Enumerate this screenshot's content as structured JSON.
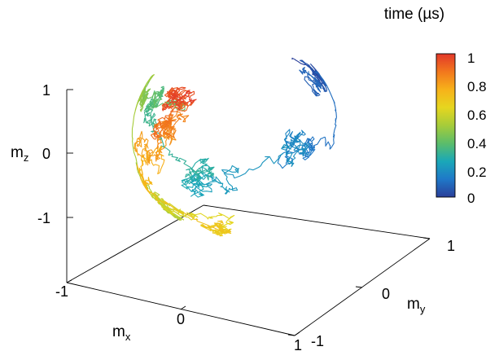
{
  "chart_data": {
    "type": "line",
    "subtype": "3d-trajectory-on-unit-sphere",
    "title": "",
    "axes": {
      "x": {
        "label": "m",
        "label_sub": "x",
        "range": [
          -1,
          1
        ],
        "ticks": [
          "-1",
          "0",
          "1"
        ]
      },
      "y": {
        "label": "m",
        "label_sub": "y",
        "range": [
          -1,
          1
        ],
        "ticks": [
          "-1",
          "0",
          "1"
        ]
      },
      "z": {
        "label": "m",
        "label_sub": "z",
        "range": [
          -1,
          1
        ],
        "ticks": [
          "-1",
          "0",
          "1"
        ]
      }
    },
    "colorbar": {
      "label": "time (µs)",
      "range": [
        0,
        1
      ],
      "ticks": [
        "0",
        "0.2",
        "0.4",
        "0.6",
        "0.8",
        "1"
      ],
      "colors": [
        "#2a3f9a",
        "#1f78c8",
        "#1aa8b8",
        "#5bbd6a",
        "#a6cc3a",
        "#e6d61f",
        "#f7b21a",
        "#f2771d",
        "#e2382a"
      ]
    },
    "grid": false,
    "series": [
      {
        "description_of_data": "magnetization trajectory (mx, my, mz) wandering over the unit sphere, colored by time",
        "time_range": [
          0,
          1
        ],
        "segments": [
          {
            "t": 0.0,
            "theta_deg": 35,
            "phi_deg": 60
          },
          {
            "t": 0.1,
            "theta_deg": 60,
            "phi_deg": 20
          },
          {
            "t": 0.2,
            "theta_deg": 80,
            "phi_deg": 110
          },
          {
            "t": 0.3,
            "theta_deg": 95,
            "phi_deg": 160
          },
          {
            "t": 0.4,
            "theta_deg": 55,
            "phi_deg": 200
          },
          {
            "t": 0.5,
            "theta_deg": 70,
            "phi_deg": 240
          },
          {
            "t": 0.6,
            "theta_deg": 120,
            "phi_deg": 200
          },
          {
            "t": 0.7,
            "theta_deg": 130,
            "phi_deg": 150
          },
          {
            "t": 0.8,
            "theta_deg": 115,
            "phi_deg": 250
          },
          {
            "t": 0.9,
            "theta_deg": 100,
            "phi_deg": 275
          },
          {
            "t": 1.0,
            "theta_deg": 85,
            "phi_deg": 290
          }
        ]
      }
    ]
  }
}
